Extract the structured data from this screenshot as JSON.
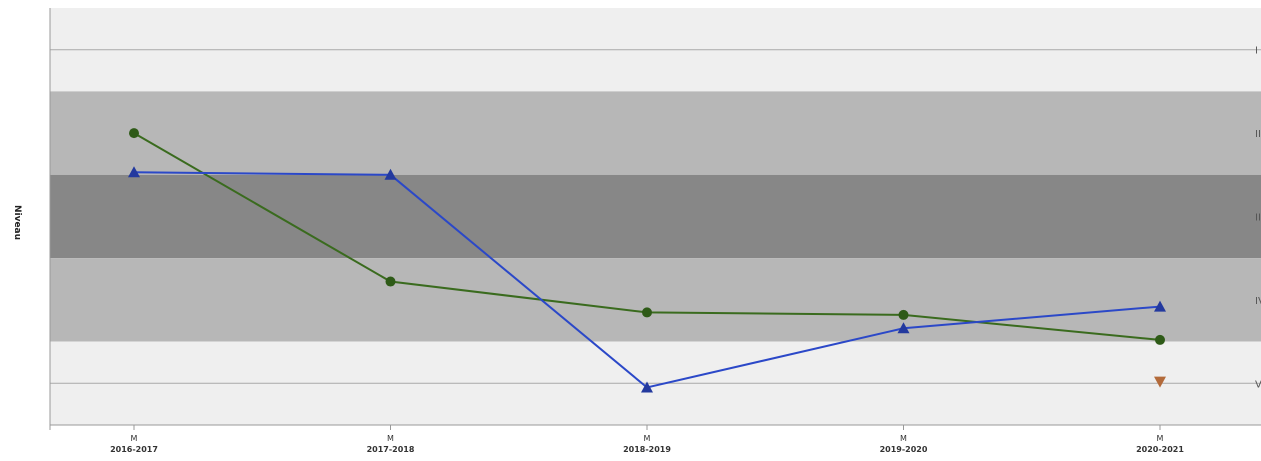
{
  "chart_data": {
    "type": "line",
    "ylabel": "Niveau",
    "x_terms": [
      "M",
      "M",
      "M",
      "M",
      "M"
    ],
    "categories": [
      "2016-2017",
      "2017-2018",
      "2018-2019",
      "2019-2020",
      "2020-2021"
    ],
    "ylim": [
      0.5,
      5.5
    ],
    "y_reversed": true,
    "levels": [
      {
        "label": "I",
        "value": 1,
        "band_from": 0.5,
        "band_to": 1.5,
        "color": "#efefef",
        "line": true
      },
      {
        "label": "II",
        "value": 2,
        "band_from": 1.5,
        "band_to": 2.5,
        "color": "#b7b7b7",
        "line": false
      },
      {
        "label": "III",
        "value": 3,
        "band_from": 2.5,
        "band_to": 3.5,
        "color": "#878787",
        "line": false
      },
      {
        "label": "IV",
        "value": 4,
        "band_from": 3.5,
        "band_to": 4.5,
        "color": "#b7b7b7",
        "line": false
      },
      {
        "label": "V",
        "value": 5,
        "band_from": 4.5,
        "band_to": 5.5,
        "color": "#efefef",
        "line": true
      }
    ],
    "series": [
      {
        "marker": "circle",
        "color": "#3a6b1e",
        "markerColor": "#2e5a17",
        "values": [
          2.0,
          3.78,
          4.15,
          4.18,
          4.48
        ]
      },
      {
        "marker": "triangle-up",
        "color": "#2b48c8",
        "markerColor": "#23399e",
        "values": [
          2.47,
          2.5,
          5.05,
          4.34,
          4.08
        ]
      },
      {
        "marker": "triangle-down",
        "color": "#b36a3a",
        "markerColor": "#b36a3a",
        "values": [
          null,
          null,
          null,
          null,
          4.98
        ]
      }
    ],
    "grid": false,
    "legend": "none"
  }
}
